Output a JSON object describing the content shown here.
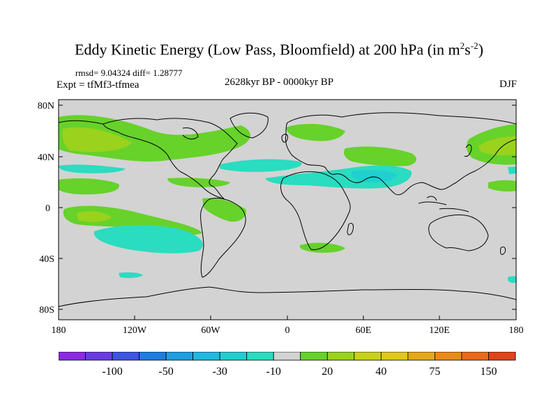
{
  "figure": {
    "title_main": "Eddy Kinetic Energy (Low Pass, Bloomfield) at 200 hPa (in m",
    "title_sup1": "2",
    "title_mid": "s",
    "title_sup2": "-2",
    "title_end": ")",
    "stats": "rmsd= 9.04324 diff= 1.28777",
    "experiment": "Expt = tfMf3-tfmea",
    "period": "2628kyr BP - 0000kyr BP",
    "season": "DJF"
  },
  "axes": {
    "lat_labels": [
      "80N",
      "40N",
      "0",
      "40S",
      "80S"
    ],
    "lon_labels": [
      "180",
      "120W",
      "60W",
      "0",
      "60E",
      "120E",
      "180"
    ]
  },
  "colorbar": {
    "colors": [
      "#8a2be2",
      "#6a3ce0",
      "#3d55e0",
      "#1e7de0",
      "#1e9ee0",
      "#20b8e0",
      "#20cfd0",
      "#2adcc0",
      "#d3d3d3",
      "#66d22a",
      "#9ad21e",
      "#c8d21a",
      "#e0c81a",
      "#e6a81a",
      "#e88a1a",
      "#e86a1a",
      "#e0441a"
    ],
    "labels": [
      "-100",
      "-50",
      "-30",
      "-10",
      "20",
      "40",
      "75",
      "150"
    ]
  },
  "colors": {
    "background": "#d3d3d3",
    "positive_low": "#66d22a",
    "positive_mid": "#9ad21e",
    "negative_low": "#2adcc0",
    "negative_mid": "#20cfd0"
  }
}
